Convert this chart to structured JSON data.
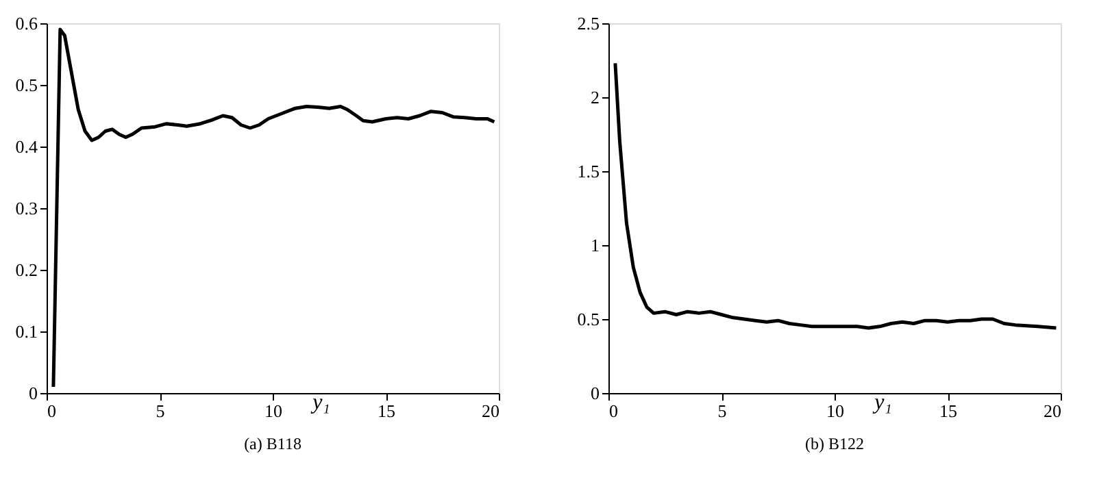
{
  "chart_data": [
    {
      "type": "line",
      "title": "(a) B118",
      "xlabel": "y₁",
      "xlim": [
        0,
        20
      ],
      "xticks": [
        0,
        5,
        10,
        15,
        20
      ],
      "ylim": [
        0,
        0.6
      ],
      "yticks": [
        0,
        0.1,
        0.2,
        0.3,
        0.4,
        0.5,
        0.6
      ],
      "grid": false,
      "line_style": "solid",
      "series": [
        {
          "color": "#000000",
          "x": [
            0.3,
            0.6,
            0.8,
            1.1,
            1.4,
            1.7,
            2.0,
            2.3,
            2.6,
            2.9,
            3.2,
            3.5,
            3.8,
            4.2,
            4.8,
            5.3,
            5.8,
            6.2,
            6.8,
            7.3,
            7.8,
            8.2,
            8.6,
            9.0,
            9.4,
            9.8,
            10.5,
            11.0,
            11.5,
            12.0,
            12.5,
            13.0,
            13.3,
            13.7,
            14.0,
            14.4,
            15.0,
            15.5,
            16.0,
            16.5,
            17.0,
            17.5,
            18.0,
            18.5,
            19.0,
            19.5,
            19.8
          ],
          "values": [
            0.01,
            0.59,
            0.58,
            0.52,
            0.46,
            0.425,
            0.41,
            0.415,
            0.425,
            0.428,
            0.42,
            0.415,
            0.42,
            0.43,
            0.432,
            0.437,
            0.435,
            0.433,
            0.437,
            0.443,
            0.45,
            0.447,
            0.435,
            0.43,
            0.435,
            0.445,
            0.455,
            0.462,
            0.465,
            0.464,
            0.462,
            0.465,
            0.46,
            0.45,
            0.442,
            0.44,
            0.445,
            0.447,
            0.445,
            0.45,
            0.457,
            0.455,
            0.448,
            0.447,
            0.445,
            0.445,
            0.44
          ]
        }
      ]
    },
    {
      "type": "line",
      "title": "(b) B122",
      "xlabel": "y₁",
      "xlim": [
        0,
        20
      ],
      "xticks": [
        0,
        5,
        10,
        15,
        20
      ],
      "ylim": [
        0,
        2.5
      ],
      "yticks": [
        0,
        0.5,
        1,
        1.5,
        2,
        2.5
      ],
      "grid": false,
      "line_style": "solid",
      "series": [
        {
          "color": "#000000",
          "x": [
            0.3,
            0.5,
            0.8,
            1.1,
            1.4,
            1.7,
            2.0,
            2.5,
            3.0,
            3.5,
            4.0,
            4.5,
            5.0,
            5.5,
            6.0,
            6.5,
            7.0,
            7.5,
            8.0,
            8.5,
            9.0,
            9.5,
            10.0,
            10.5,
            11.0,
            11.5,
            12.0,
            12.5,
            13.0,
            13.5,
            14.0,
            14.5,
            15.0,
            15.5,
            16.0,
            16.5,
            17.0,
            17.5,
            18.0,
            19.0,
            19.8
          ],
          "values": [
            2.23,
            1.7,
            1.15,
            0.85,
            0.68,
            0.58,
            0.54,
            0.55,
            0.53,
            0.55,
            0.54,
            0.55,
            0.53,
            0.51,
            0.5,
            0.49,
            0.48,
            0.49,
            0.47,
            0.46,
            0.45,
            0.45,
            0.45,
            0.45,
            0.45,
            0.44,
            0.45,
            0.47,
            0.48,
            0.47,
            0.49,
            0.49,
            0.48,
            0.49,
            0.49,
            0.5,
            0.5,
            0.47,
            0.46,
            0.45,
            0.44
          ]
        }
      ]
    }
  ]
}
